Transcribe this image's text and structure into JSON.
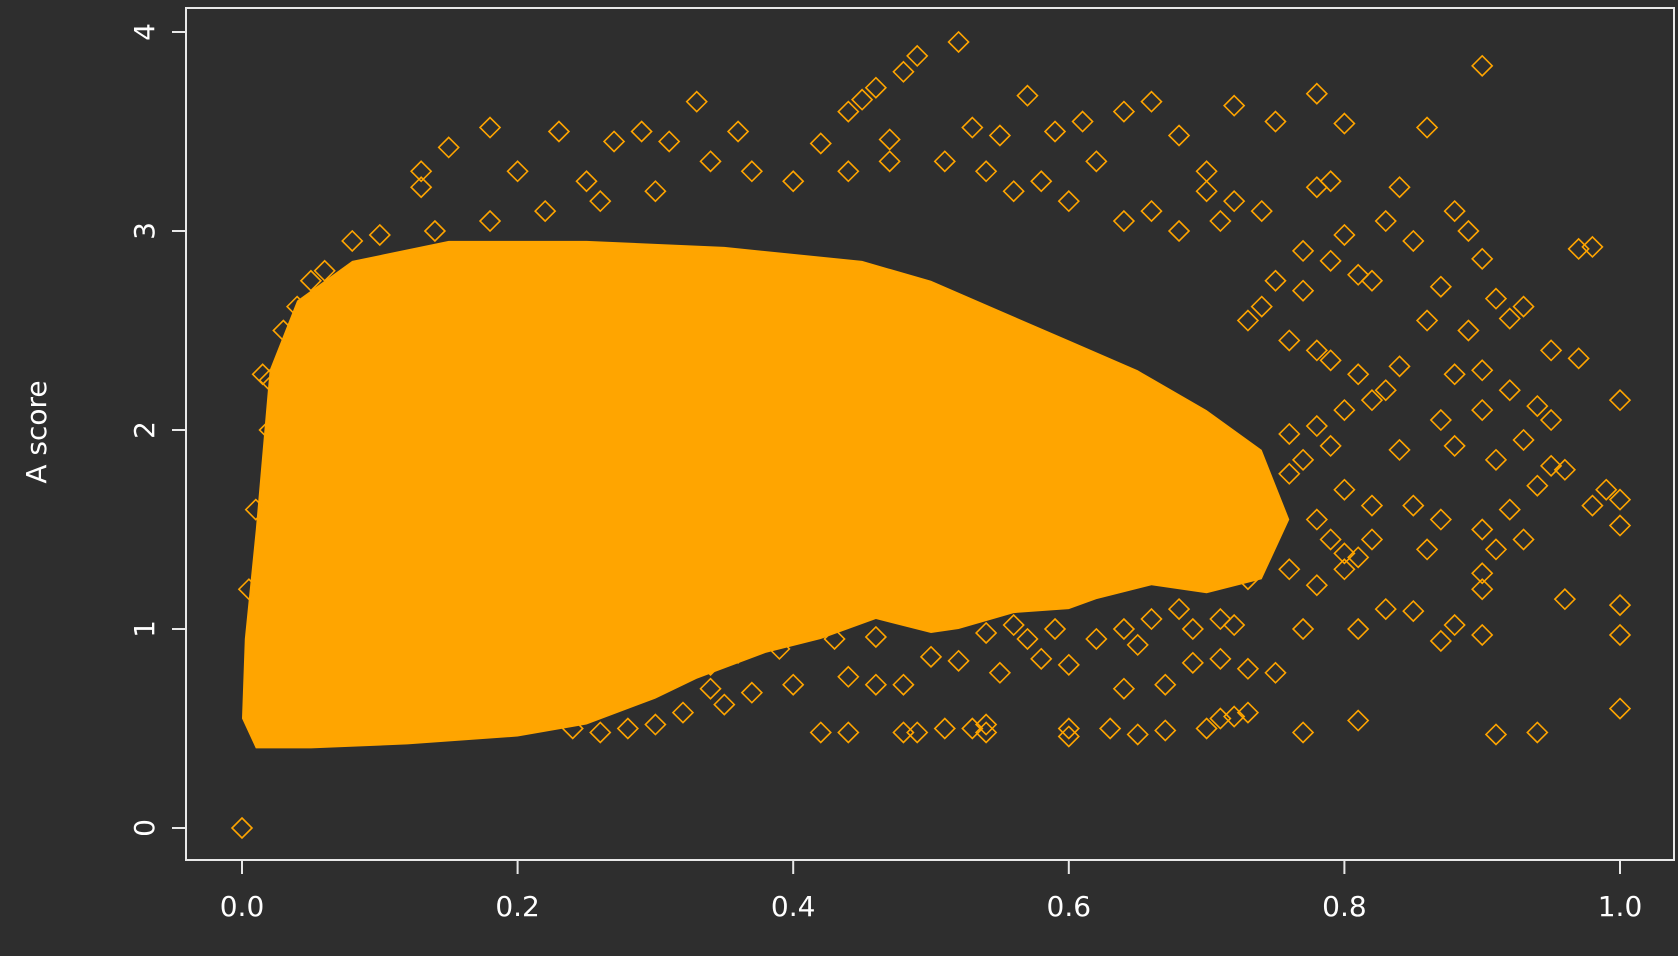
{
  "chart_data": {
    "type": "scatter",
    "xlabel": "",
    "ylabel": "A score",
    "xlim": [
      0,
      1
    ],
    "ylim": [
      0,
      4
    ],
    "x_ticks": [
      "0.0",
      "0.2",
      "0.4",
      "0.6",
      "0.8",
      "1.0"
    ],
    "y_ticks": [
      "0",
      "1",
      "2",
      "3",
      "4"
    ],
    "grid": false,
    "marker": "open-diamond",
    "series": [
      {
        "color": "#FFA500",
        "dense_region": [
          [
            0.0,
            0.55
          ],
          [
            0.002,
            0.95
          ],
          [
            0.01,
            1.5
          ],
          [
            0.02,
            2.3
          ],
          [
            0.04,
            2.65
          ],
          [
            0.08,
            2.85
          ],
          [
            0.15,
            2.95
          ],
          [
            0.25,
            2.95
          ],
          [
            0.35,
            2.92
          ],
          [
            0.45,
            2.85
          ],
          [
            0.5,
            2.75
          ],
          [
            0.55,
            2.6
          ],
          [
            0.6,
            2.45
          ],
          [
            0.65,
            2.3
          ],
          [
            0.7,
            2.1
          ],
          [
            0.74,
            1.9
          ],
          [
            0.76,
            1.55
          ],
          [
            0.74,
            1.25
          ],
          [
            0.7,
            1.18
          ],
          [
            0.66,
            1.22
          ],
          [
            0.62,
            1.15
          ],
          [
            0.6,
            1.1
          ],
          [
            0.56,
            1.08
          ],
          [
            0.52,
            1.0
          ],
          [
            0.5,
            0.98
          ],
          [
            0.46,
            1.05
          ],
          [
            0.42,
            0.95
          ],
          [
            0.38,
            0.88
          ],
          [
            0.33,
            0.75
          ],
          [
            0.3,
            0.65
          ],
          [
            0.25,
            0.52
          ],
          [
            0.2,
            0.46
          ],
          [
            0.12,
            0.42
          ],
          [
            0.05,
            0.4
          ],
          [
            0.01,
            0.4
          ]
        ],
        "points": [
          [
            0.0,
            0.0
          ],
          [
            0.52,
            3.95
          ],
          [
            0.9,
            3.83
          ],
          [
            0.49,
            3.88
          ],
          [
            0.48,
            3.8
          ],
          [
            0.46,
            3.72
          ],
          [
            0.45,
            3.66
          ],
          [
            0.44,
            3.6
          ],
          [
            0.33,
            3.65
          ],
          [
            0.57,
            3.68
          ],
          [
            0.66,
            3.65
          ],
          [
            0.72,
            3.63
          ],
          [
            0.78,
            3.69
          ],
          [
            0.64,
            3.6
          ],
          [
            0.61,
            3.55
          ],
          [
            0.18,
            3.52
          ],
          [
            0.23,
            3.5
          ],
          [
            0.29,
            3.5
          ],
          [
            0.36,
            3.5
          ],
          [
            0.53,
            3.52
          ],
          [
            0.55,
            3.48
          ],
          [
            0.59,
            3.5
          ],
          [
            0.68,
            3.48
          ],
          [
            0.75,
            3.55
          ],
          [
            0.8,
            3.54
          ],
          [
            0.86,
            3.52
          ],
          [
            0.27,
            3.45
          ],
          [
            0.31,
            3.45
          ],
          [
            0.42,
            3.44
          ],
          [
            0.47,
            3.46
          ],
          [
            0.15,
            3.42
          ],
          [
            0.13,
            3.3
          ],
          [
            0.13,
            3.22
          ],
          [
            0.2,
            3.3
          ],
          [
            0.25,
            3.25
          ],
          [
            0.62,
            3.35
          ],
          [
            0.7,
            3.3
          ],
          [
            0.84,
            3.22
          ],
          [
            0.88,
            3.1
          ],
          [
            0.89,
            3.0
          ],
          [
            0.97,
            2.91
          ],
          [
            0.98,
            2.92
          ],
          [
            0.85,
            2.95
          ],
          [
            0.9,
            2.86
          ],
          [
            0.82,
            2.75
          ],
          [
            0.87,
            2.72
          ],
          [
            0.91,
            2.66
          ],
          [
            0.93,
            2.62
          ],
          [
            0.92,
            2.56
          ],
          [
            0.86,
            2.55
          ],
          [
            0.89,
            2.5
          ],
          [
            0.95,
            2.4
          ],
          [
            0.97,
            2.36
          ],
          [
            0.84,
            2.32
          ],
          [
            0.88,
            2.28
          ],
          [
            0.9,
            2.3
          ],
          [
            0.83,
            2.2
          ],
          [
            0.92,
            2.2
          ],
          [
            1.0,
            2.15
          ],
          [
            0.9,
            2.1
          ],
          [
            0.94,
            2.12
          ],
          [
            0.87,
            2.05
          ],
          [
            0.95,
            2.05
          ],
          [
            0.93,
            1.95
          ],
          [
            0.88,
            1.92
          ],
          [
            0.84,
            1.9
          ],
          [
            0.91,
            1.85
          ],
          [
            0.95,
            1.82
          ],
          [
            0.96,
            1.8
          ],
          [
            0.99,
            1.7
          ],
          [
            1.0,
            1.65
          ],
          [
            0.94,
            1.72
          ],
          [
            0.98,
            1.62
          ],
          [
            0.92,
            1.6
          ],
          [
            0.85,
            1.62
          ],
          [
            0.87,
            1.55
          ],
          [
            0.9,
            1.5
          ],
          [
            1.0,
            1.52
          ],
          [
            0.93,
            1.45
          ],
          [
            0.91,
            1.4
          ],
          [
            0.82,
            1.45
          ],
          [
            0.86,
            1.4
          ],
          [
            0.8,
            1.3
          ],
          [
            0.81,
            1.36
          ],
          [
            0.9,
            1.28
          ],
          [
            0.76,
            1.3
          ],
          [
            0.73,
            1.25
          ],
          [
            0.78,
            1.22
          ],
          [
            0.9,
            1.2
          ],
          [
            0.96,
            1.15
          ],
          [
            1.0,
            1.12
          ],
          [
            0.85,
            1.09
          ],
          [
            0.83,
            1.1
          ],
          [
            0.77,
            1.0
          ],
          [
            0.81,
            1.0
          ],
          [
            0.88,
            1.02
          ],
          [
            0.9,
            0.97
          ],
          [
            0.87,
            0.94
          ],
          [
            1.0,
            0.97
          ],
          [
            0.75,
            0.78
          ],
          [
            0.73,
            0.8
          ],
          [
            0.71,
            0.85
          ],
          [
            0.69,
            0.83
          ],
          [
            0.67,
            0.72
          ],
          [
            0.64,
            0.7
          ],
          [
            0.6,
            0.82
          ],
          [
            0.58,
            0.85
          ],
          [
            0.55,
            0.78
          ],
          [
            0.52,
            0.84
          ],
          [
            0.5,
            0.86
          ],
          [
            0.48,
            0.72
          ],
          [
            0.46,
            0.72
          ],
          [
            0.44,
            0.76
          ],
          [
            0.4,
            0.72
          ],
          [
            0.37,
            0.68
          ],
          [
            0.35,
            0.62
          ],
          [
            0.34,
            0.7
          ],
          [
            0.32,
            0.58
          ],
          [
            0.3,
            0.52
          ],
          [
            0.28,
            0.5
          ],
          [
            0.26,
            0.48
          ],
          [
            0.24,
            0.5
          ],
          [
            0.42,
            0.48
          ],
          [
            0.44,
            0.48
          ],
          [
            0.48,
            0.48
          ],
          [
            0.49,
            0.48
          ],
          [
            0.51,
            0.5
          ],
          [
            0.53,
            0.5
          ],
          [
            0.54,
            0.52
          ],
          [
            0.54,
            0.48
          ],
          [
            0.6,
            0.5
          ],
          [
            0.6,
            0.46
          ],
          [
            0.63,
            0.5
          ],
          [
            0.65,
            0.47
          ],
          [
            0.67,
            0.49
          ],
          [
            0.7,
            0.5
          ],
          [
            0.71,
            0.55
          ],
          [
            0.72,
            0.56
          ],
          [
            0.73,
            0.58
          ],
          [
            0.77,
            0.48
          ],
          [
            0.81,
            0.54
          ],
          [
            0.91,
            0.47
          ],
          [
            0.94,
            0.48
          ],
          [
            1.0,
            0.6
          ],
          [
            0.62,
            0.95
          ],
          [
            0.64,
            1.0
          ],
          [
            0.65,
            0.92
          ],
          [
            0.66,
            1.05
          ],
          [
            0.69,
            1.0
          ],
          [
            0.71,
            1.05
          ],
          [
            0.68,
            1.1
          ],
          [
            0.72,
            1.02
          ],
          [
            0.57,
            0.95
          ],
          [
            0.54,
            0.98
          ],
          [
            0.56,
            1.02
          ],
          [
            0.59,
            1.0
          ],
          [
            0.5,
            1.05
          ],
          [
            0.46,
            0.96
          ],
          [
            0.43,
            0.95
          ],
          [
            0.39,
            0.9
          ],
          [
            0.36,
            0.88
          ],
          [
            0.34,
            0.82
          ],
          [
            0.31,
            0.78
          ],
          [
            0.79,
            3.25
          ],
          [
            0.78,
            3.22
          ],
          [
            0.83,
            3.05
          ],
          [
            0.8,
            2.98
          ],
          [
            0.77,
            2.9
          ],
          [
            0.79,
            2.85
          ],
          [
            0.81,
            2.78
          ],
          [
            0.75,
            2.75
          ],
          [
            0.77,
            2.7
          ],
          [
            0.74,
            2.62
          ],
          [
            0.73,
            2.55
          ],
          [
            0.76,
            2.45
          ],
          [
            0.78,
            2.4
          ],
          [
            0.79,
            2.35
          ],
          [
            0.81,
            2.28
          ],
          [
            0.82,
            2.15
          ],
          [
            0.8,
            2.1
          ],
          [
            0.78,
            2.02
          ],
          [
            0.76,
            1.98
          ],
          [
            0.79,
            1.92
          ],
          [
            0.77,
            1.85
          ],
          [
            0.76,
            1.78
          ],
          [
            0.8,
            1.7
          ],
          [
            0.82,
            1.62
          ],
          [
            0.78,
            1.55
          ],
          [
            0.79,
            1.45
          ],
          [
            0.8,
            1.38
          ],
          [
            0.7,
            3.2
          ],
          [
            0.72,
            3.15
          ],
          [
            0.74,
            3.1
          ],
          [
            0.71,
            3.05
          ],
          [
            0.68,
            3.0
          ],
          [
            0.66,
            3.1
          ],
          [
            0.64,
            3.05
          ],
          [
            0.6,
            3.15
          ],
          [
            0.58,
            3.25
          ],
          [
            0.56,
            3.2
          ],
          [
            0.54,
            3.3
          ],
          [
            0.51,
            3.35
          ],
          [
            0.47,
            3.35
          ],
          [
            0.44,
            3.3
          ],
          [
            0.4,
            3.25
          ],
          [
            0.37,
            3.3
          ],
          [
            0.34,
            3.35
          ],
          [
            0.3,
            3.2
          ],
          [
            0.26,
            3.15
          ],
          [
            0.22,
            3.1
          ],
          [
            0.18,
            3.05
          ],
          [
            0.14,
            3.0
          ],
          [
            0.1,
            2.98
          ],
          [
            0.08,
            2.95
          ],
          [
            0.06,
            2.8
          ],
          [
            0.05,
            2.75
          ],
          [
            0.04,
            2.62
          ],
          [
            0.03,
            2.5
          ],
          [
            0.02,
            2.25
          ],
          [
            0.015,
            2.28
          ],
          [
            0.02,
            2.0
          ],
          [
            0.01,
            1.6
          ],
          [
            0.005,
            1.2
          ]
        ]
      }
    ]
  }
}
